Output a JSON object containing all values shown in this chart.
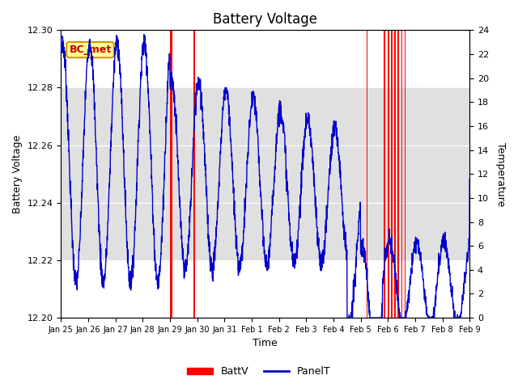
{
  "title": "Battery Voltage",
  "xlabel": "Time",
  "ylabel_left": "Battery Voltage",
  "ylabel_right": "Temperature",
  "ylim_left": [
    12.2,
    12.3
  ],
  "ylim_right": [
    0,
    24
  ],
  "xtick_positions": [
    0,
    1,
    2,
    3,
    4,
    5,
    6,
    7,
    8,
    9,
    10,
    11,
    12,
    13,
    14,
    15
  ],
  "xtick_labels": [
    "Jan 25",
    "Jan 26",
    "Jan 27",
    "Jan 28",
    "Jan 29",
    "Jan 30",
    "Jan 31",
    "Feb 1",
    "Feb 2",
    "Feb 3",
    "Feb 4",
    "Feb 5",
    "Feb 6",
    "Feb 7",
    "Feb 8",
    "Feb 9"
  ],
  "shade_y_min": 12.22,
  "shade_y_max": 12.28,
  "bg_color": "#ffffff",
  "shade_color": "#e0e0e0",
  "panel_color": "#0000cc",
  "batt_color": "#ff0000",
  "legend_items": [
    "BattV",
    "PanelT"
  ],
  "bc_met_label": "BC_met",
  "bc_met_bg": "#ffff99",
  "bc_met_border": "#cc9900",
  "bc_met_text_color": "#cc0000",
  "red_spikes": [
    [
      4.0,
      4.08
    ],
    [
      4.85,
      4.93
    ],
    [
      11.22,
      11.26
    ],
    [
      11.85,
      11.89
    ],
    [
      12.0,
      12.04
    ],
    [
      12.12,
      12.16
    ],
    [
      12.24,
      12.28
    ],
    [
      12.36,
      12.4
    ],
    [
      12.5,
      12.54
    ],
    [
      12.62,
      12.66
    ]
  ],
  "panel_amp_early": 10,
  "panel_amp_late": 6,
  "panel_base_early": 12,
  "panel_base_late": 8
}
